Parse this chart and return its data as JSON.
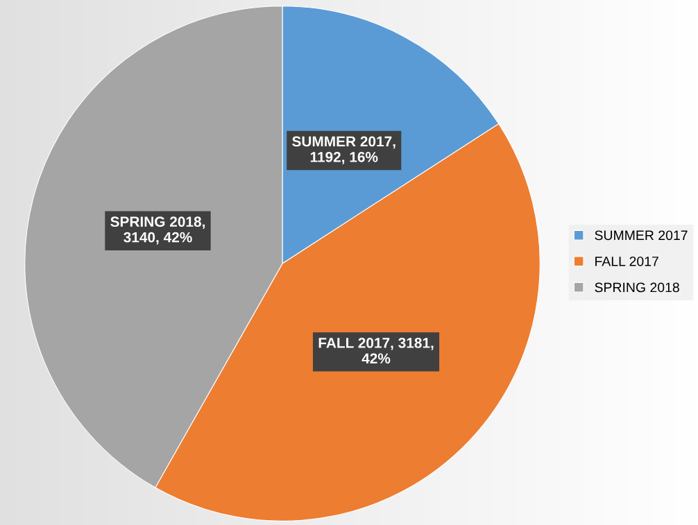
{
  "chart_data": {
    "type": "pie",
    "categories": [
      "SUMMER 2017",
      "FALL 2017",
      "SPRING 2018"
    ],
    "values": [
      1192,
      3181,
      3140
    ],
    "colors": [
      "#5b9bd5",
      "#ed7d31",
      "#a5a5a5"
    ],
    "value_labels": [
      "SUMMER 2017,\n1192, 16%",
      "FALL 2017, 3181,\n42%",
      "SPRING 2018,\n3140, 42%"
    ],
    "legend": "right"
  }
}
